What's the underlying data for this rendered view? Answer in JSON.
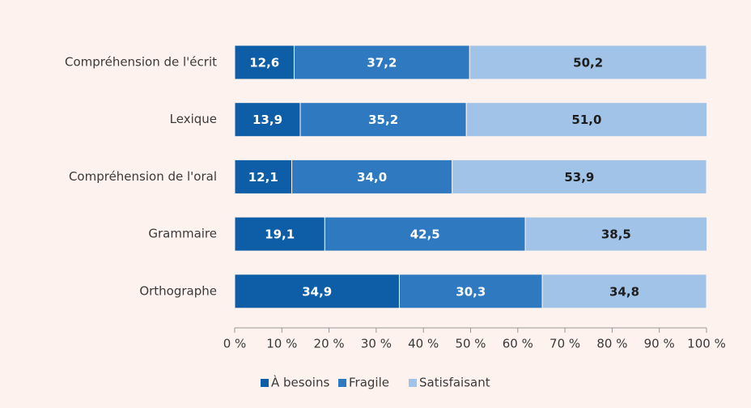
{
  "chart_data": {
    "type": "stacked-bar-horizontal",
    "categories": [
      "Compréhension de l'écrit",
      "Lexique",
      "Compréhension de l'oral",
      "Grammaire",
      "Orthographe"
    ],
    "series": [
      {
        "name": "À besoins",
        "color": "#0d5ea6",
        "values": [
          12.6,
          13.9,
          12.1,
          19.1,
          34.9
        ],
        "value_labels": [
          "12,6",
          "13,9",
          "12,1",
          "19,1",
          "34,9"
        ]
      },
      {
        "name": "Fragile",
        "color": "#2f79c1",
        "values": [
          37.2,
          35.2,
          34.0,
          42.5,
          30.3
        ],
        "value_labels": [
          "37,2",
          "35,2",
          "34,0",
          "42,5",
          "30,3"
        ]
      },
      {
        "name": "Satisfaisant",
        "color": "#a0c3e7",
        "values": [
          50.2,
          51.0,
          53.9,
          38.5,
          34.8
        ],
        "value_labels": [
          "50,2",
          "51,0",
          "53,9",
          "38,5",
          "34,8"
        ]
      }
    ],
    "xlim": [
      0,
      100
    ],
    "xticks": [
      {
        "value": 0,
        "label": "0 %"
      },
      {
        "value": 10,
        "label": "10 %"
      },
      {
        "value": 20,
        "label": "20 %"
      },
      {
        "value": 30,
        "label": "30 %"
      },
      {
        "value": 40,
        "label": "40 %"
      },
      {
        "value": 50,
        "label": "50 %"
      },
      {
        "value": 60,
        "label": "60 %"
      },
      {
        "value": 70,
        "label": "70 %"
      },
      {
        "value": 80,
        "label": "80 %"
      },
      {
        "value": 90,
        "label": "90 %"
      },
      {
        "value": 100,
        "label": "100 %"
      }
    ],
    "legend": "bottom"
  }
}
